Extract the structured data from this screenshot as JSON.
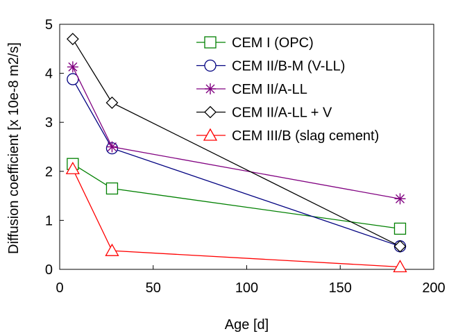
{
  "chart_data": {
    "type": "line",
    "xlabel": "Age [d]",
    "ylabel": "Diffusion coefficient [x 10e-8 m2/s]",
    "xlim": [
      0,
      200
    ],
    "ylim": [
      0,
      5
    ],
    "xticks": [
      0,
      50,
      100,
      150,
      200
    ],
    "yticks": [
      0,
      1,
      2,
      3,
      4,
      5
    ],
    "grid": false,
    "legend_position": "top-right",
    "series": [
      {
        "name": "CEM I (OPC)",
        "color": "#008000",
        "marker": "square",
        "x": [
          7,
          28,
          182
        ],
        "y": [
          2.15,
          1.65,
          0.83
        ]
      },
      {
        "name": "CEM II/B-M (V-LL)",
        "color": "#000080",
        "marker": "circle",
        "x": [
          7,
          28,
          182
        ],
        "y": [
          3.88,
          2.47,
          0.47
        ]
      },
      {
        "name": "CEM II/A-LL",
        "color": "#800080",
        "marker": "asterisk",
        "x": [
          7,
          28,
          182
        ],
        "y": [
          4.13,
          2.5,
          1.44
        ]
      },
      {
        "name": "CEM II/A-LL + V",
        "color": "#000000",
        "marker": "diamond",
        "x": [
          7,
          28,
          182
        ],
        "y": [
          4.7,
          3.4,
          0.47
        ]
      },
      {
        "name": "CEM III/B (slag cement)",
        "color": "#ff0000",
        "marker": "triangle",
        "x": [
          7,
          28,
          182
        ],
        "y": [
          2.05,
          0.38,
          0.05
        ]
      }
    ]
  }
}
